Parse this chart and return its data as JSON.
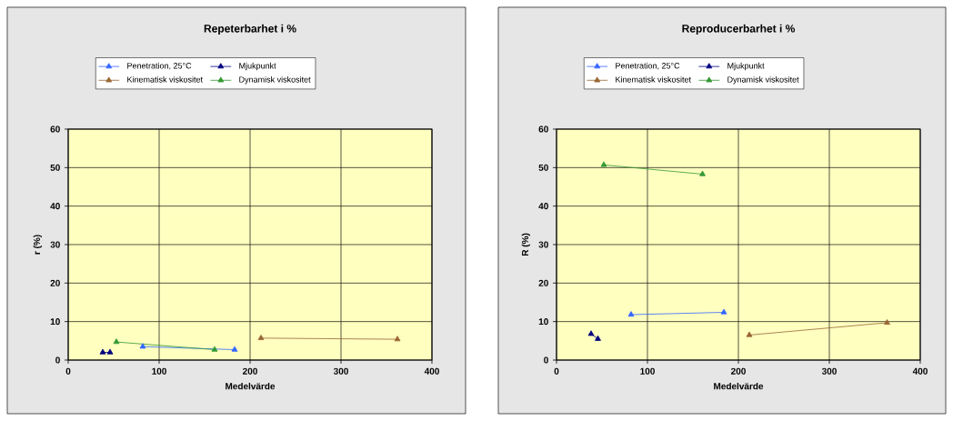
{
  "chart_data": [
    {
      "type": "line",
      "title": "Repeterbarhet i %",
      "xlabel": "Medelvärde",
      "ylabel": "r (%)",
      "xlim": [
        0,
        400
      ],
      "ylim": [
        0,
        60
      ],
      "xticks": [
        0,
        100,
        200,
        300,
        400
      ],
      "yticks": [
        0,
        10,
        20,
        30,
        40,
        50,
        60
      ],
      "grid": true,
      "legend": "top",
      "marker": "triangle",
      "line_style": "solid",
      "series": [
        {
          "name": "Penetration, 25°C",
          "color": "#3366ff",
          "x": [
            82,
            183
          ],
          "values": [
            3.5,
            2.7
          ]
        },
        {
          "name": "Mjukpunkt",
          "color": "#000080",
          "x": [
            38,
            46
          ],
          "values": [
            2,
            2
          ]
        },
        {
          "name": "Kinematisk viskositet",
          "color": "#996633",
          "x": [
            212,
            362
          ],
          "values": [
            5.7,
            5.4
          ]
        },
        {
          "name": "Dynamisk viskositet",
          "color": "#339933",
          "x": [
            53,
            161
          ],
          "values": [
            4.7,
            2.7
          ]
        }
      ]
    },
    {
      "type": "line",
      "title": "Reproducerbarhet i %",
      "xlabel": "Medelvärde",
      "ylabel": "R (%)",
      "xlim": [
        0,
        400
      ],
      "ylim": [
        0,
        60
      ],
      "xticks": [
        0,
        100,
        200,
        300,
        400
      ],
      "yticks": [
        0,
        10,
        20,
        30,
        40,
        50,
        60
      ],
      "grid": true,
      "legend": "top",
      "marker": "triangle",
      "line_style": "solid",
      "series": [
        {
          "name": "Penetration, 25°C",
          "color": "#3366ff",
          "x": [
            82,
            184
          ],
          "values": [
            11.8,
            12.4
          ]
        },
        {
          "name": "Mjukpunkt",
          "color": "#000080",
          "x": [
            38,
            45.5
          ],
          "values": [
            6.8,
            5.5
          ]
        },
        {
          "name": "Kinematisk viskositet",
          "color": "#996633",
          "x": [
            212,
            363.5
          ],
          "values": [
            6.5,
            9.7
          ]
        },
        {
          "name": "Dynamisk viskositet",
          "color": "#339933",
          "x": [
            52,
            160.5
          ],
          "values": [
            50.7,
            48.3
          ]
        }
      ]
    }
  ]
}
